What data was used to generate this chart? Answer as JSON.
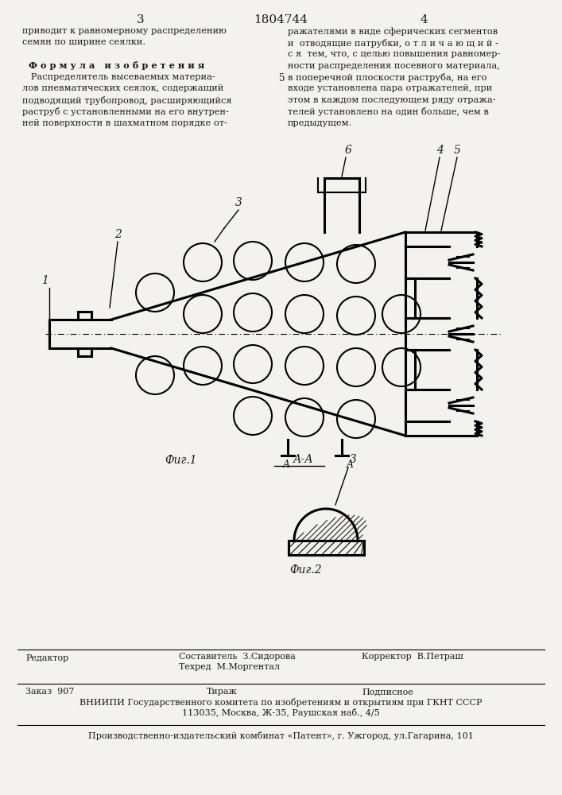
{
  "title_page_num_left": "3",
  "title_center": "1804744",
  "title_page_num_right": "4",
  "bg_color": "#f4f2ee",
  "text_color": "#1a1a1a",
  "fig1_caption": "Фиг.1",
  "fig2_caption": "Фиг.2",
  "fig2_section_label": "А-А",
  "fig2_number": "3",
  "bottom_editor_label": "Редактор",
  "bottom_compiler": "Составитель  З.Сидорова",
  "bottom_techred": "Техред  М.Моргентал",
  "bottom_corrector": "Корректор  В.Петраш",
  "bottom_order": "Заказ  907",
  "bottom_tirazh": "Тираж",
  "bottom_podpisnoe": "Подписное",
  "bottom_vniiipi": "ВНИИПИ Государственного комитета по изобретениям и открытиям при ГКНТ СССР",
  "bottom_address": "113035, Москва, Ж-35, Раушская наб., 4/5",
  "bottom_factory": "Производственно-издательский комбинат «Патент», г. Ужгород, ул.Гагарина, 101",
  "right_text_number_5": "5"
}
